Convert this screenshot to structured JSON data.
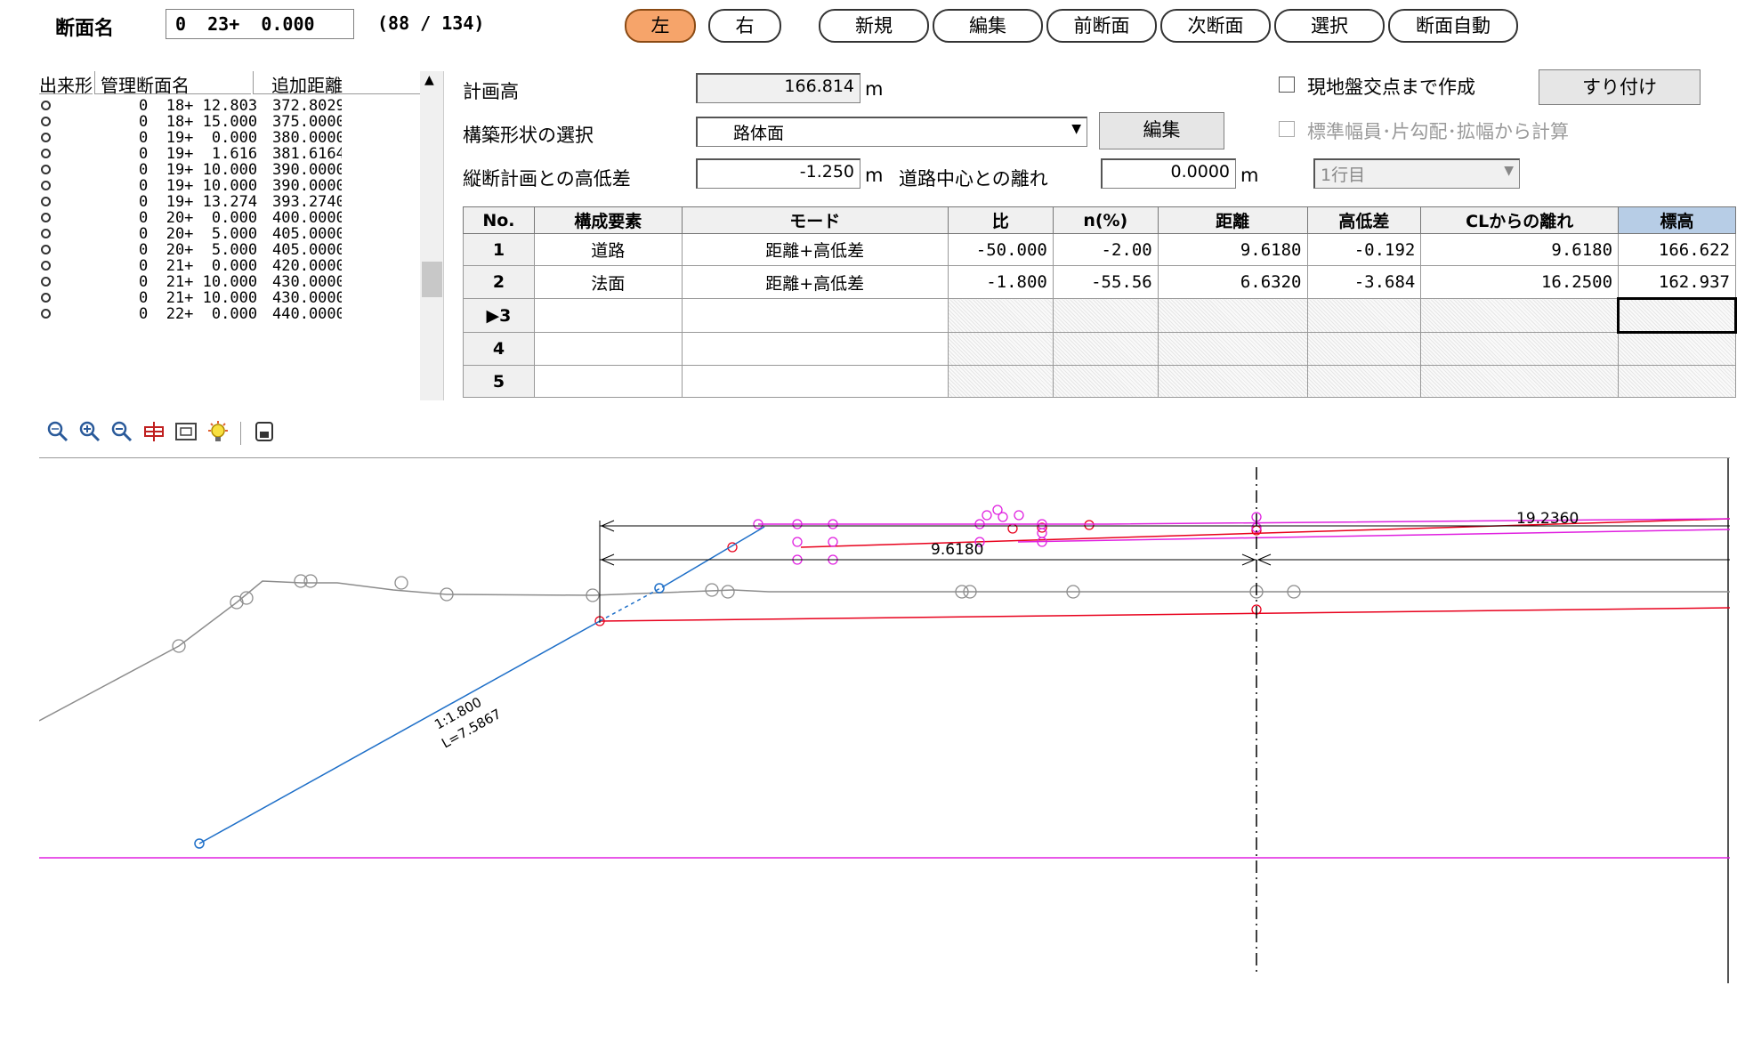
{
  "topbar": {
    "section_label": "断面名",
    "section_value": "0  23+  0.000",
    "section_count": "(88 / 134)",
    "buttons": [
      {
        "label": "左",
        "active": true
      },
      {
        "label": "右",
        "active": false
      },
      {
        "label": "新規",
        "active": false
      },
      {
        "label": "編集",
        "active": false
      },
      {
        "label": "前断面",
        "active": false
      },
      {
        "label": "次断面",
        "active": false
      },
      {
        "label": "選択",
        "active": false
      },
      {
        "label": "断面自動",
        "active": false
      }
    ]
  },
  "section_list": {
    "headers": [
      "出来形",
      "管理断面名",
      "追加距離"
    ],
    "rows": [
      {
        "name": "0  18+ 12.803",
        "dist": "372.8029"
      },
      {
        "name": "0  18+ 15.000",
        "dist": "375.0000"
      },
      {
        "name": "0  19+  0.000",
        "dist": "380.0000"
      },
      {
        "name": "0  19+  1.616",
        "dist": "381.6164"
      },
      {
        "name": "0  19+ 10.000",
        "dist": "390.0000"
      },
      {
        "name": "0  19+ 10.000",
        "dist": "390.0000"
      },
      {
        "name": "0  19+ 13.274",
        "dist": "393.2740"
      },
      {
        "name": "0  20+  0.000",
        "dist": "400.0000"
      },
      {
        "name": "0  20+  5.000",
        "dist": "405.0000"
      },
      {
        "name": "0  20+  5.000",
        "dist": "405.0000"
      },
      {
        "name": "0  21+  0.000",
        "dist": "420.0000"
      },
      {
        "name": "0  21+ 10.000",
        "dist": "430.0000"
      },
      {
        "name": "0  21+ 10.000",
        "dist": "430.0000"
      },
      {
        "name": "0  22+  0.000",
        "dist": "440.0000"
      }
    ]
  },
  "form": {
    "plan_height_label": "計画高",
    "plan_height_value": "166.814",
    "unit_m": "m",
    "shape_label": "構築形状の選択",
    "shape_value": "路体面",
    "edit_button": "編集",
    "diff_label": "縦断計画との高低差",
    "diff_value": "-1.250",
    "offset_label": "道路中心との離れ",
    "offset_value": "0.0000",
    "ground_check_label": "現地盤交点まで作成",
    "fit_button": "すり付け",
    "std_width_label": "標準幅員･片勾配･拡幅から計算",
    "row_select": "1行目"
  },
  "grid": {
    "headers": [
      "No.",
      "構成要素",
      "モード",
      "比",
      "n(%)",
      "距離",
      "高低差",
      "CLからの離れ",
      "標高"
    ],
    "rows": [
      {
        "no": "1",
        "element": "道路",
        "mode": "距離+高低差",
        "ratio": "-50.000",
        "n": "-2.00",
        "dist": "9.6180",
        "diff": "-0.192",
        "cl": "9.6180",
        "elev": "166.622"
      },
      {
        "no": "2",
        "element": "法面",
        "mode": "距離+高低差",
        "ratio": "-1.800",
        "n": "-55.56",
        "dist": "6.6320",
        "diff": "-3.684",
        "cl": "16.2500",
        "elev": "162.937"
      },
      {
        "no": "▶3",
        "element": "",
        "mode": "",
        "ratio": "",
        "n": "",
        "dist": "",
        "diff": "",
        "cl": "",
        "elev": ""
      },
      {
        "no": "4",
        "element": "",
        "mode": "",
        "ratio": "",
        "n": "",
        "dist": "",
        "diff": "",
        "cl": "",
        "elev": ""
      },
      {
        "no": "5",
        "element": "",
        "mode": "",
        "ratio": "",
        "n": "",
        "dist": "",
        "diff": "",
        "cl": "",
        "elev": ""
      }
    ]
  },
  "toolbar": {
    "icons": [
      "zoom-fit-icon",
      "zoom-in-icon",
      "zoom-out-icon",
      "pan-icon",
      "zoom-window-icon",
      "light-icon",
      "save-icon"
    ]
  },
  "drawing": {
    "slope_label": "1:1.800",
    "length_label": "L=7.5867",
    "dim_1": "9.6180",
    "dim_2": "19.2360",
    "colors": {
      "ground": "#8c8c8c",
      "plan": "#e8001c",
      "design": "#e020e0",
      "slope": "#1e6fc8"
    }
  }
}
